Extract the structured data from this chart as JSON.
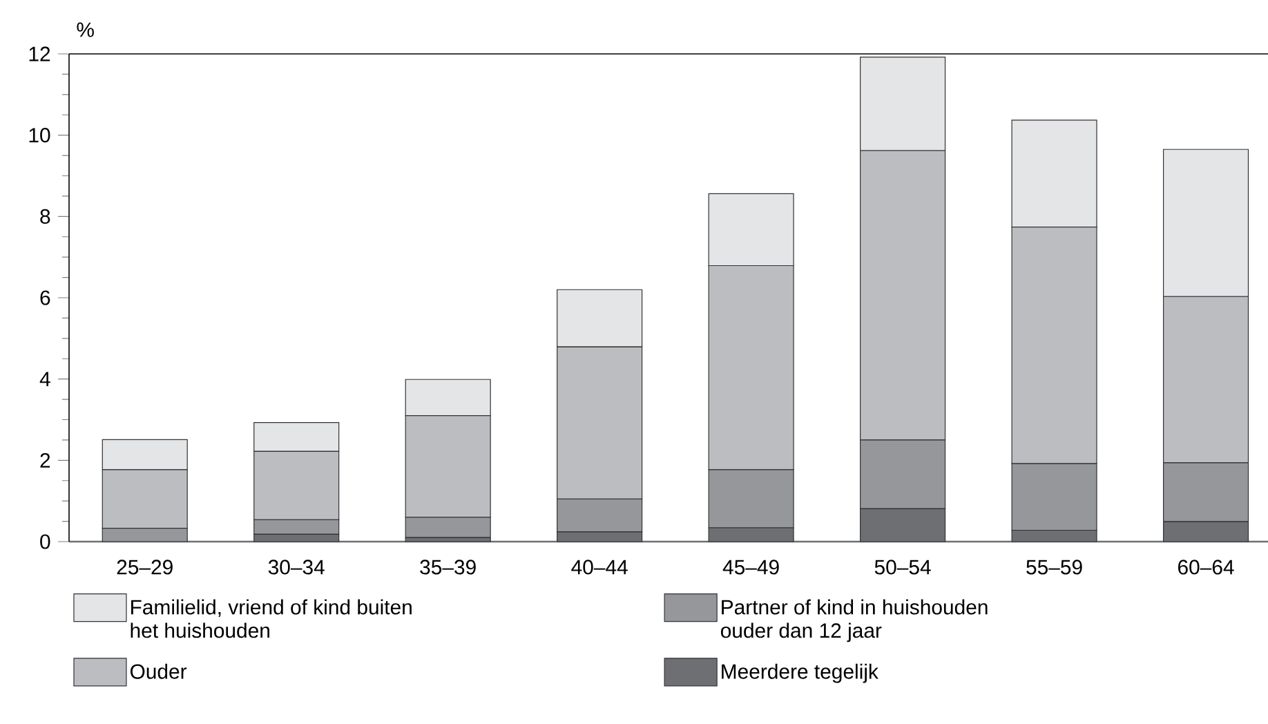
{
  "chart_data": {
    "type": "bar",
    "stacked": true,
    "ylabel": "%",
    "categories": [
      "25–29",
      "30–34",
      "35–39",
      "40–44",
      "45–49",
      "50–54",
      "55–59",
      "60–64"
    ],
    "series": [
      {
        "name": "Meerdere tegelijk",
        "color": "#6e6f73",
        "values": [
          0,
          0.18,
          0.1,
          0.24,
          0.34,
          0.81,
          0.28,
          0.49
        ]
      },
      {
        "name": "Partner of kind in huishouden ouder dan 12 jaar",
        "color": "#96979b",
        "values": [
          0.33,
          0.36,
          0.5,
          0.81,
          1.43,
          1.69,
          1.64,
          1.45
        ]
      },
      {
        "name": "Ouder",
        "color": "#bcbdc1",
        "values": [
          1.44,
          1.68,
          2.5,
          3.74,
          5.02,
          7.12,
          5.82,
          4.09
        ]
      },
      {
        "name": "Familielid, vriend of kind buiten het huishouden",
        "color": "#e4e5e7",
        "values": [
          0.74,
          0.71,
          0.89,
          1.41,
          1.77,
          2.3,
          2.63,
          3.62
        ]
      }
    ],
    "ylim": [
      0,
      12
    ],
    "yticks": [
      0,
      2,
      4,
      6,
      8,
      10,
      12
    ],
    "legend": "bottom"
  }
}
